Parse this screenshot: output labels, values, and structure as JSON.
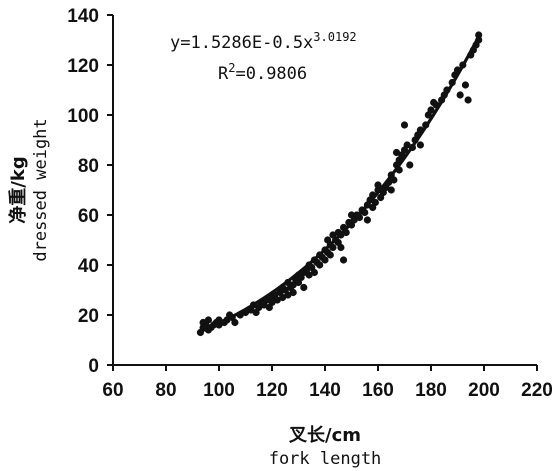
{
  "chart_data": {
    "type": "scatter",
    "xlabel_cn": "叉长/cm",
    "xlabel_en": "fork length",
    "ylabel_cn": "净重/kg",
    "ylabel_en": "dressed weight",
    "xlim": [
      60,
      220
    ],
    "ylim": [
      0,
      140
    ],
    "xticks": [
      "60",
      "80",
      "100",
      "120",
      "140",
      "160",
      "180",
      "200",
      "220"
    ],
    "yticks": [
      "0",
      "20",
      "40",
      "60",
      "80",
      "100",
      "120",
      "140"
    ],
    "equation": {
      "prefix": "y=1.5286E-0.5x",
      "exponent": "3.0192"
    },
    "r2": {
      "prefix": "R",
      "sup": "2",
      "value": "=0.9806"
    },
    "fit": {
      "a": 1.5286e-05,
      "b": 3.0192,
      "x_from": 92,
      "x_to": 198
    },
    "series": [
      {
        "points": [
          [
            93,
            13
          ],
          [
            94,
            15
          ],
          [
            94,
            17
          ],
          [
            95,
            16
          ],
          [
            96,
            14
          ],
          [
            96,
            18
          ],
          [
            97,
            15
          ],
          [
            98,
            16
          ],
          [
            99,
            17
          ],
          [
            100,
            16
          ],
          [
            100,
            18
          ],
          [
            102,
            17
          ],
          [
            103,
            18
          ],
          [
            104,
            20
          ],
          [
            105,
            19
          ],
          [
            106,
            17
          ],
          [
            108,
            20
          ],
          [
            110,
            21
          ],
          [
            112,
            22
          ],
          [
            113,
            24
          ],
          [
            114,
            21
          ],
          [
            115,
            23
          ],
          [
            116,
            25
          ],
          [
            117,
            24
          ],
          [
            118,
            26
          ],
          [
            119,
            23
          ],
          [
            120,
            27
          ],
          [
            120,
            25
          ],
          [
            121,
            28
          ],
          [
            122,
            26
          ],
          [
            123,
            29
          ],
          [
            124,
            27
          ],
          [
            124,
            31
          ],
          [
            125,
            30
          ],
          [
            126,
            28
          ],
          [
            126,
            33
          ],
          [
            127,
            31
          ],
          [
            128,
            32
          ],
          [
            128,
            29
          ],
          [
            129,
            34
          ],
          [
            130,
            33
          ],
          [
            130,
            36
          ],
          [
            131,
            35
          ],
          [
            132,
            31
          ],
          [
            132,
            37
          ],
          [
            133,
            38
          ],
          [
            134,
            36
          ],
          [
            134,
            40
          ],
          [
            135,
            39
          ],
          [
            136,
            37
          ],
          [
            136,
            42
          ],
          [
            137,
            41
          ],
          [
            138,
            40
          ],
          [
            138,
            44
          ],
          [
            139,
            43
          ],
          [
            140,
            42
          ],
          [
            140,
            46
          ],
          [
            141,
            45
          ],
          [
            141,
            50
          ],
          [
            142,
            48
          ],
          [
            142,
            44
          ],
          [
            143,
            52
          ],
          [
            143,
            47
          ],
          [
            144,
            50
          ],
          [
            145,
            49
          ],
          [
            145,
            53
          ],
          [
            146,
            52
          ],
          [
            146,
            47
          ],
          [
            147,
            55
          ],
          [
            147,
            42
          ],
          [
            148,
            53
          ],
          [
            149,
            57
          ],
          [
            150,
            56
          ],
          [
            150,
            60
          ],
          [
            151,
            58
          ],
          [
            152,
            60
          ],
          [
            153,
            59
          ],
          [
            154,
            62
          ],
          [
            155,
            61
          ],
          [
            156,
            64
          ],
          [
            156,
            58
          ],
          [
            157,
            66
          ],
          [
            158,
            63
          ],
          [
            158,
            68
          ],
          [
            159,
            65
          ],
          [
            160,
            70
          ],
          [
            160,
            72
          ],
          [
            161,
            67
          ],
          [
            162,
            69
          ],
          [
            163,
            71
          ],
          [
            164,
            73
          ],
          [
            165,
            76
          ],
          [
            165,
            70
          ],
          [
            166,
            74
          ],
          [
            167,
            80
          ],
          [
            167,
            85
          ],
          [
            168,
            82
          ],
          [
            168,
            78
          ],
          [
            169,
            84
          ],
          [
            170,
            86
          ],
          [
            170,
            96
          ],
          [
            171,
            88
          ],
          [
            172,
            80
          ],
          [
            173,
            87
          ],
          [
            174,
            90
          ],
          [
            175,
            92
          ],
          [
            176,
            94
          ],
          [
            176,
            88
          ],
          [
            178,
            96
          ],
          [
            179,
            100
          ],
          [
            180,
            102
          ],
          [
            181,
            105
          ],
          [
            182,
            104
          ],
          [
            184,
            106
          ],
          [
            185,
            108
          ],
          [
            186,
            110
          ],
          [
            188,
            113
          ],
          [
            189,
            116
          ],
          [
            190,
            118
          ],
          [
            191,
            108
          ],
          [
            192,
            120
          ],
          [
            193,
            112
          ],
          [
            194,
            106
          ],
          [
            195,
            124
          ],
          [
            196,
            126
          ],
          [
            197,
            128
          ],
          [
            198,
            132
          ],
          [
            198,
            130
          ]
        ]
      }
    ]
  }
}
